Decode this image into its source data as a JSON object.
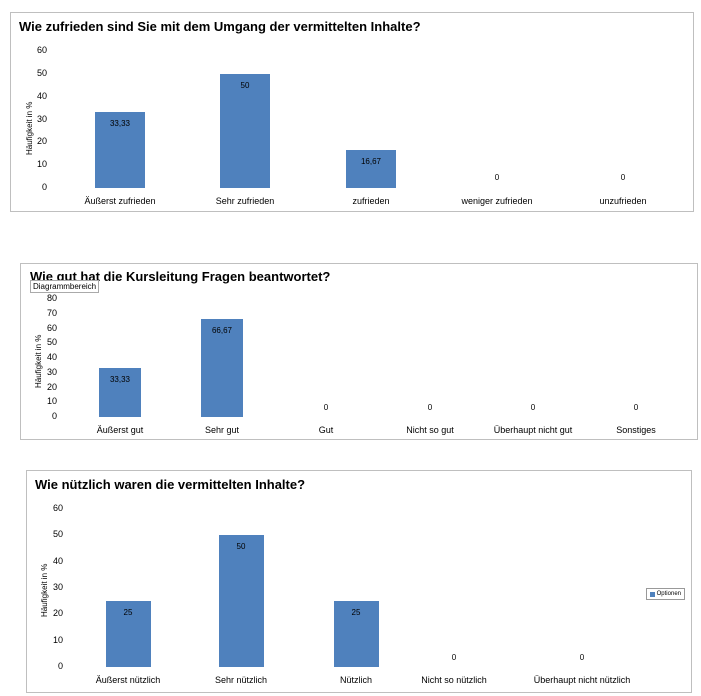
{
  "chart_data": [
    {
      "type": "bar",
      "title": "Wie zufrieden sind Sie mit dem Umgang der vermittelten Inhalte?",
      "ylabel": "Häufigkeit in %",
      "ylim": [
        0,
        60
      ],
      "yticks": [
        "0",
        "10",
        "20",
        "30",
        "40",
        "50",
        "60"
      ],
      "categories": [
        "Äußerst zufrieden",
        "Sehr zufrieden",
        "zufrieden",
        "weniger zufrieden",
        "unzufrieden"
      ],
      "values": [
        33.33,
        50,
        16.67,
        0,
        0
      ],
      "value_labels": [
        "33,33",
        "50",
        "16,67",
        "0",
        "0"
      ],
      "color": "#4f81bd"
    },
    {
      "type": "bar",
      "title": "Wie gut hat die Kursleitung Fragen beantwortet?",
      "tooltip": "Diagrammbereich",
      "ylabel": "Häufigkeit in %",
      "ylim": [
        0,
        80
      ],
      "yticks": [
        "0",
        "10",
        "20",
        "30",
        "40",
        "50",
        "60",
        "70",
        "80"
      ],
      "categories": [
        "Äußerst gut",
        "Sehr gut",
        "Gut",
        "Nicht so gut",
        "Überhaupt nicht gut",
        "Sonstiges"
      ],
      "values": [
        33.33,
        66.67,
        0,
        0,
        0,
        0
      ],
      "value_labels": [
        "33,33",
        "66,67",
        "0",
        "0",
        "0",
        "0"
      ],
      "color": "#4f81bd"
    },
    {
      "type": "bar",
      "title": "Wie nützlich waren die vermittelten Inhalte?",
      "ylabel": "Häufigkeit in %",
      "ylim": [
        0,
        60
      ],
      "yticks": [
        "0",
        "10",
        "20",
        "30",
        "40",
        "50",
        "60"
      ],
      "categories": [
        "Äußerst nützlich",
        "Sehr nützlich",
        "Nützlich",
        "Nicht so nützlich",
        "Überhaupt nicht nützlich"
      ],
      "values": [
        25,
        50,
        25,
        0,
        0
      ],
      "value_labels": [
        "25",
        "50",
        "25",
        "0",
        "0"
      ],
      "legend": "Optionen",
      "legend_position": "right",
      "color": "#4f81bd"
    }
  ]
}
